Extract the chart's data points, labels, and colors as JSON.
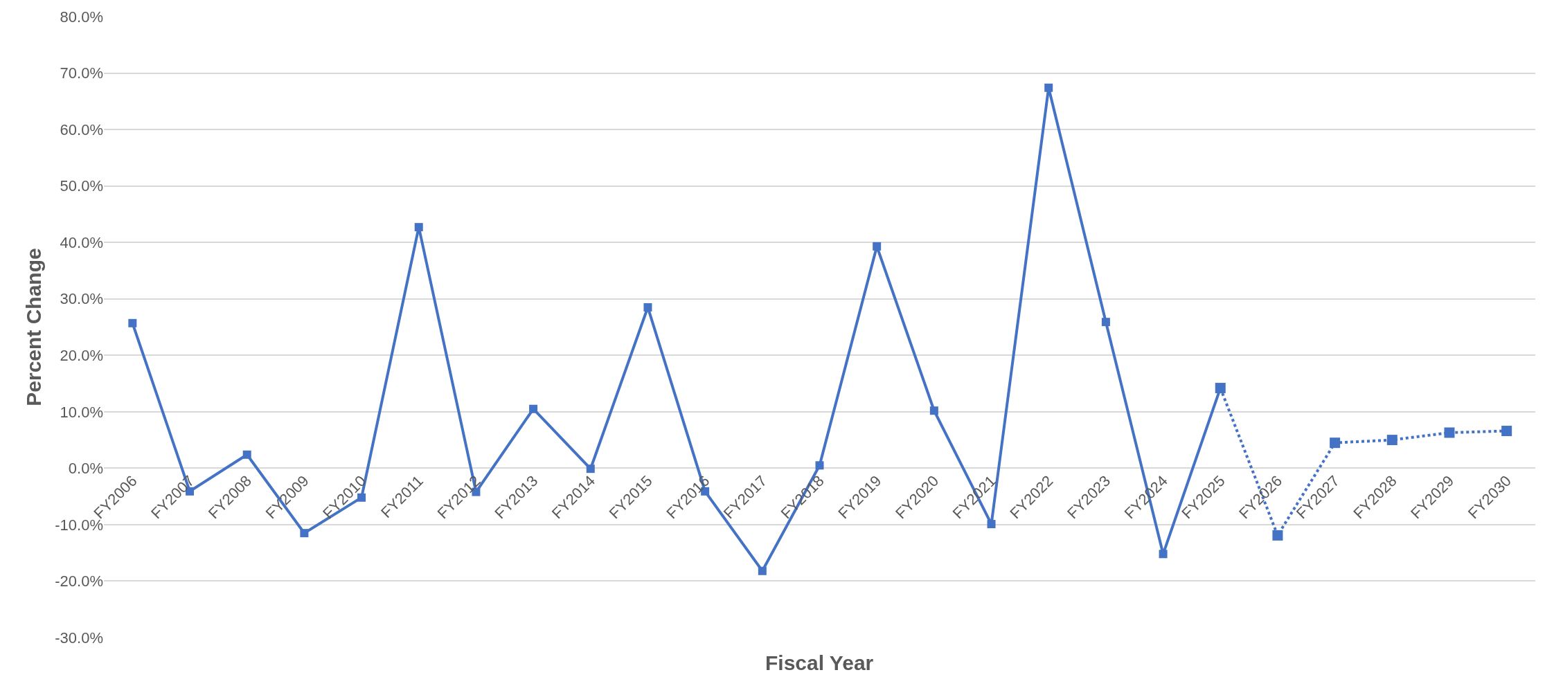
{
  "chart_data": {
    "type": "line",
    "xlabel": "Fiscal Year",
    "ylabel": "Percent Change",
    "categories": [
      "FY2006",
      "FY2007",
      "FY2008",
      "FY2009",
      "FY2010",
      "FY2011",
      "FY2012",
      "FY2013",
      "FY2014",
      "FY2015",
      "FY2016",
      "FY2017",
      "FY2018",
      "FY2019",
      "FY2020",
      "FY2021",
      "FY2022",
      "FY2023",
      "FY2024",
      "FY2025",
      "FY2026",
      "FY2027",
      "FY2028",
      "FY2029",
      "FY2030"
    ],
    "series": [
      {
        "color": "#4472c4",
        "line_style": "solid",
        "values": [
          25.7,
          -4.1,
          2.4,
          -11.5,
          -5.2,
          42.7,
          -4.2,
          10.5,
          -0.1,
          28.5,
          -4.1,
          -18.2,
          0.5,
          39.3,
          10.2,
          -9.9,
          67.4,
          25.9,
          -15.2,
          14.2,
          null,
          null,
          null,
          null,
          null
        ]
      },
      {
        "color": "#4472c4",
        "line_style": "dotted",
        "values": [
          null,
          null,
          null,
          null,
          null,
          null,
          null,
          null,
          null,
          null,
          null,
          null,
          null,
          null,
          null,
          null,
          null,
          null,
          null,
          14.2,
          -11.9,
          4.5,
          5.0,
          6.3,
          6.6
        ]
      }
    ],
    "ylim": [
      -30,
      80
    ],
    "yticks": [
      {
        "value": -30,
        "label": "-30.0%"
      },
      {
        "value": -20,
        "label": "-20.0%"
      },
      {
        "value": -10,
        "label": "-10.0%"
      },
      {
        "value": 0,
        "label": "0.0%"
      },
      {
        "value": 10,
        "label": "10.0%"
      },
      {
        "value": 20,
        "label": "20.0%"
      },
      {
        "value": 30,
        "label": "30.0%"
      },
      {
        "value": 40,
        "label": "40.0%"
      },
      {
        "value": 50,
        "label": "50.0%"
      },
      {
        "value": 60,
        "label": "60.0%"
      },
      {
        "value": 70,
        "label": "70.0%"
      },
      {
        "value": 80,
        "label": "80.0%"
      }
    ],
    "grid": "y",
    "marker": "square"
  }
}
